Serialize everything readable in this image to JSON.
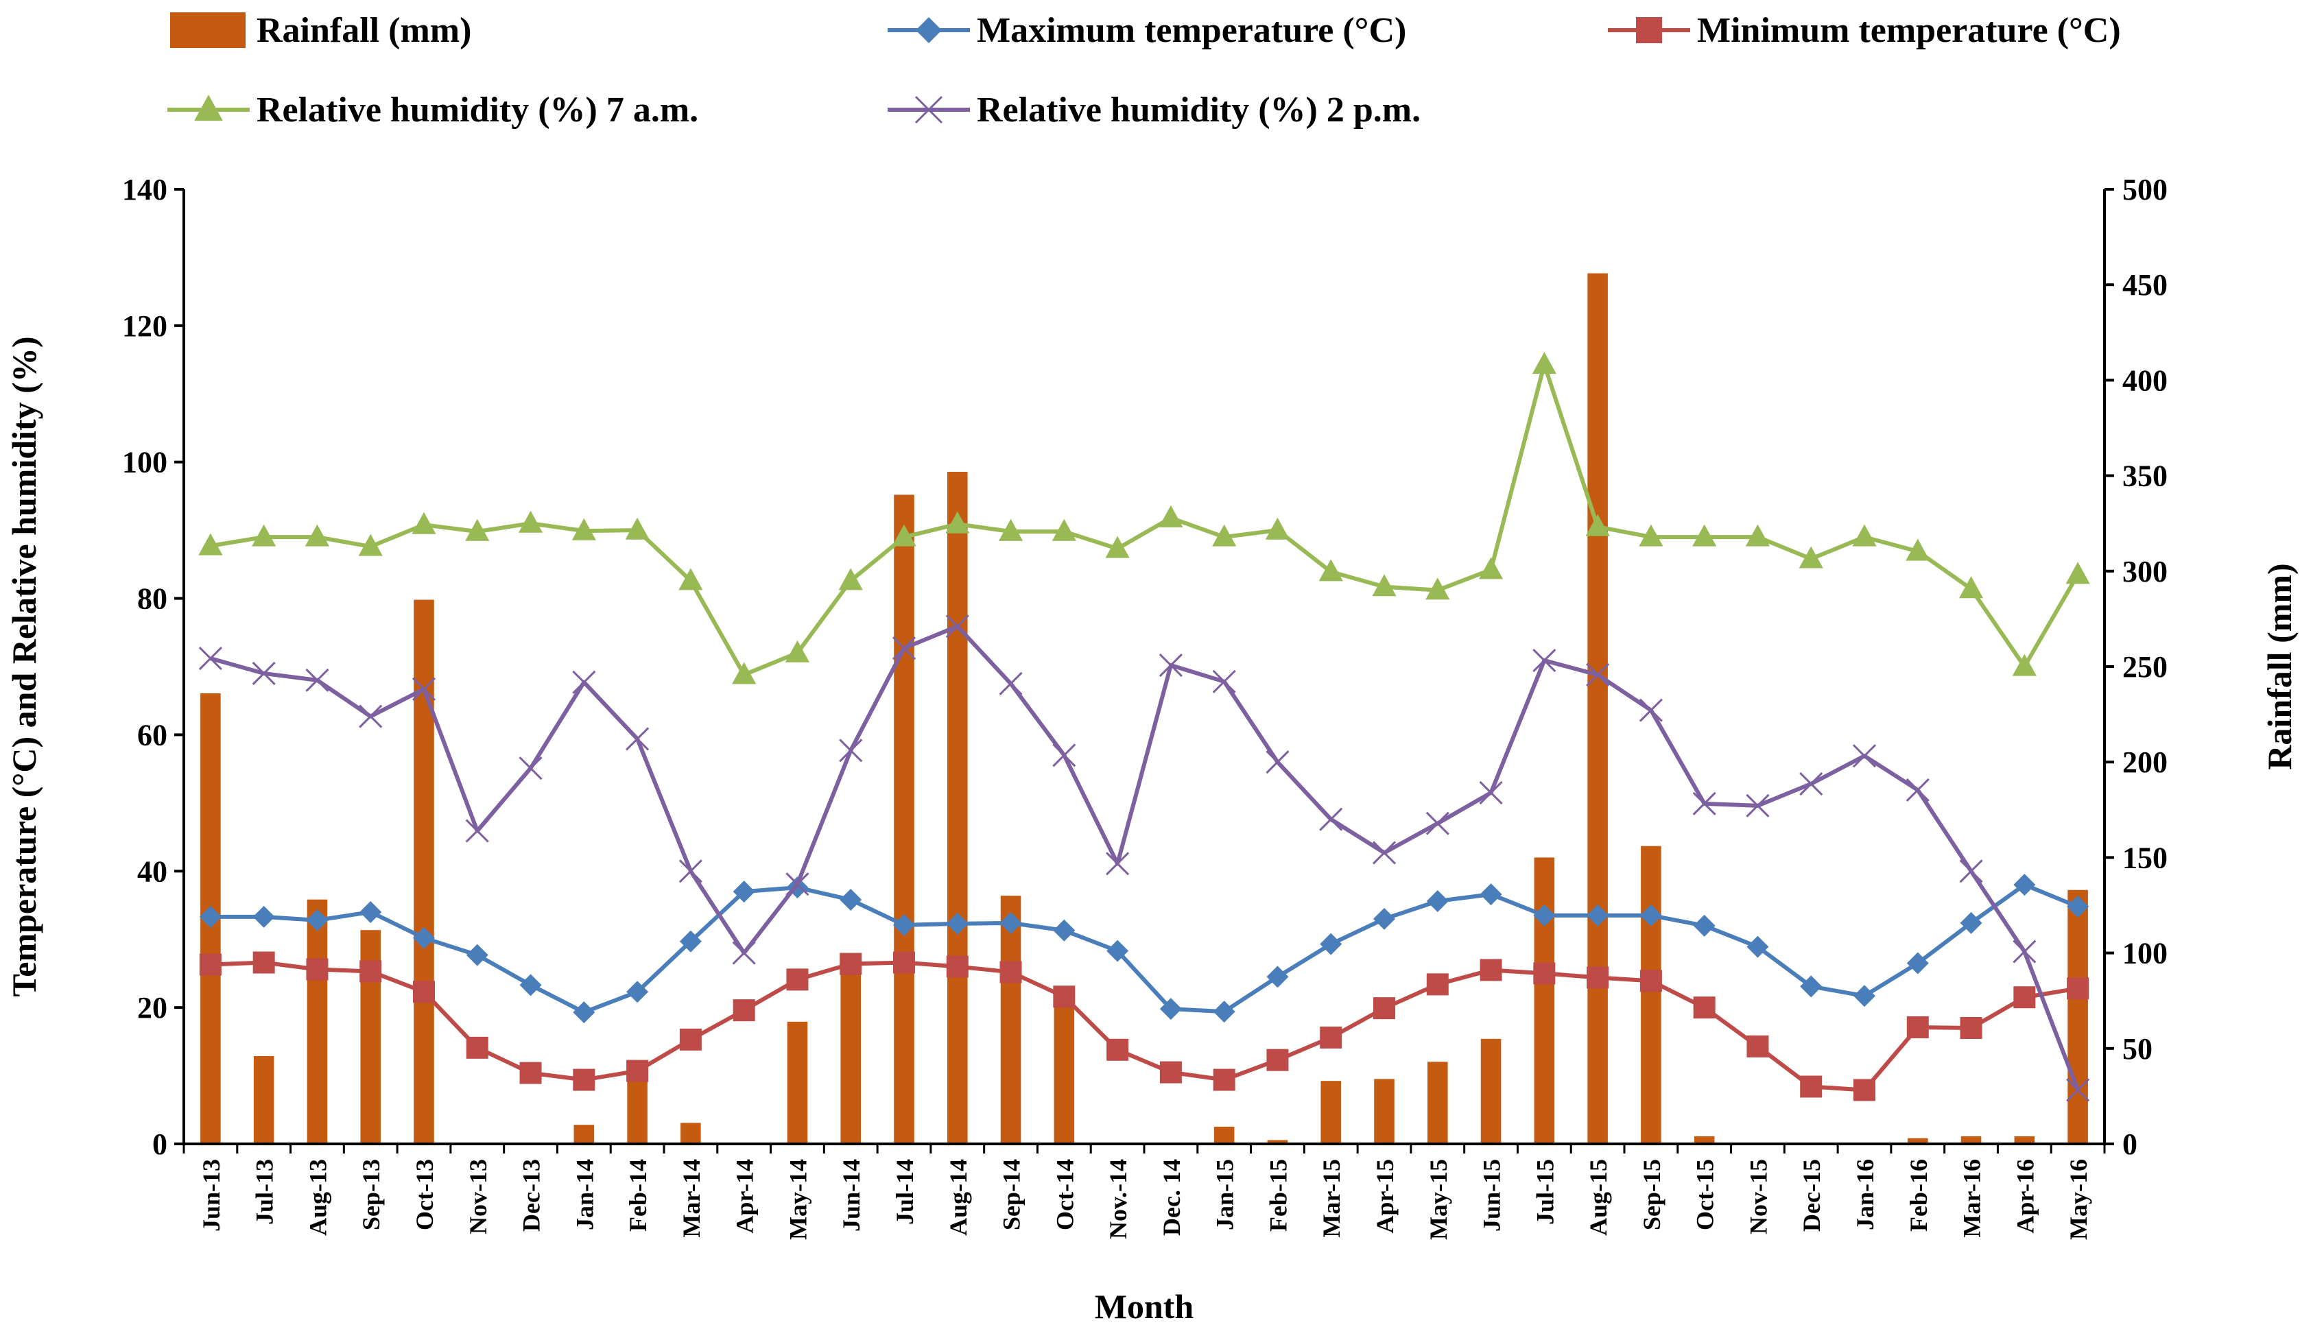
{
  "chart_data": {
    "type": "bar+line",
    "title": "",
    "xlabel": "Month",
    "ylabel_left": "Temperature (°C) and Relative humidity (%)",
    "ylabel_right": "Rainfall (mm)",
    "ylim_left": [
      0,
      140
    ],
    "ylim_right": [
      0,
      500
    ],
    "yticks_left": [
      0,
      20,
      40,
      60,
      80,
      100,
      120,
      140
    ],
    "yticks_right": [
      0,
      50,
      100,
      150,
      200,
      250,
      300,
      350,
      400,
      450,
      500
    ],
    "grid": false,
    "legend_position": "top",
    "categories": [
      "Jun-13",
      "Jul-13",
      "Aug-13",
      "Sep-13",
      "Oct-13",
      "Nov-13",
      "Dec-13",
      "Jan-14",
      "Feb-14",
      "Mar-14",
      "Apr-14",
      "May-14",
      "Jun-14",
      "Jul-14",
      "Aug-14",
      "Sep-14",
      "Oct-14",
      "Nov.-14",
      "Dec. 14",
      "Jan-15",
      "Feb-15",
      "Mar-15",
      "Apr-15",
      "May-15",
      "Jun-15",
      "Jul-15",
      "Aug-15",
      "Sep-15",
      "Oct-15",
      "Nov-15",
      "Dec-15",
      "Jan-16",
      "Feb-16",
      "Mar-16",
      "Apr-16",
      "May-16"
    ],
    "series": [
      {
        "name": "Rainfall (mm)",
        "kind": "bar",
        "axis": "right",
        "color": "#c55a11",
        "values": [
          236,
          46,
          128,
          112,
          285,
          0,
          0,
          10,
          37,
          11,
          0,
          64,
          92,
          340,
          352,
          130,
          72,
          0,
          0,
          9,
          2,
          33,
          34,
          43,
          55,
          150,
          456,
          156,
          4,
          0,
          0,
          0,
          3,
          4,
          4,
          133
        ]
      },
      {
        "name": "Maximum temperature (°C)",
        "kind": "line",
        "axis": "left",
        "color": "#4a7ebb",
        "marker": "diamond",
        "values": [
          33.3,
          33.3,
          32.8,
          34,
          30.2,
          27.7,
          23.3,
          19.3,
          22.3,
          29.7,
          37,
          37.6,
          35.8,
          32.1,
          32.3,
          32.4,
          31.3,
          28.3,
          19.8,
          19.4,
          24.5,
          29.3,
          33,
          35.6,
          36.6,
          33.5,
          33.5,
          33.5,
          32,
          28.9,
          23.1,
          21.7,
          26.5,
          32.4,
          38,
          34.8
        ]
      },
      {
        "name": "Minimum temperature (°C)",
        "kind": "line",
        "axis": "left",
        "color": "#be4b48",
        "marker": "square",
        "values": [
          26.3,
          26.6,
          25.6,
          25.3,
          22.3,
          14.1,
          10.4,
          9.4,
          10.7,
          15.3,
          19.6,
          24.1,
          26.4,
          26.6,
          26,
          25.2,
          21.6,
          13.8,
          10.5,
          9.4,
          12.3,
          15.6,
          19.9,
          23.4,
          25.5,
          25,
          24.4,
          23.9,
          20,
          14.3,
          8.4,
          7.9,
          17.1,
          17,
          21.5,
          22.8
        ]
      },
      {
        "name": "Relative humidity (%) 7 a.m.",
        "kind": "line",
        "axis": "left",
        "color": "#98b954",
        "marker": "triangle",
        "values": [
          87.7,
          89,
          89,
          87.6,
          90.8,
          89.8,
          91,
          89.9,
          90,
          82.6,
          68.8,
          72,
          82.6,
          89,
          90.9,
          89.8,
          89.8,
          87.3,
          91.8,
          89,
          90,
          83.9,
          81.7,
          81.2,
          84.2,
          114.3,
          90.5,
          89,
          89,
          89,
          85.8,
          89,
          86.9,
          81.4,
          70,
          83.5
        ]
      },
      {
        "name": "Relative humidity (%) 2 p.m.",
        "kind": "line",
        "axis": "left",
        "color": "#7d60a0",
        "marker": "x",
        "values": [
          71.2,
          69,
          68,
          62.7,
          66.7,
          45.9,
          55.1,
          67.7,
          59.4,
          40,
          28,
          38.1,
          57.7,
          72.7,
          75.9,
          67.5,
          57,
          41.1,
          70.2,
          67.8,
          56,
          47.6,
          42.7,
          47,
          51.5,
          70.9,
          68.8,
          63.6,
          49.9,
          49.6,
          52.8,
          56.9,
          51.9,
          40,
          28.2,
          7.9
        ]
      }
    ]
  }
}
